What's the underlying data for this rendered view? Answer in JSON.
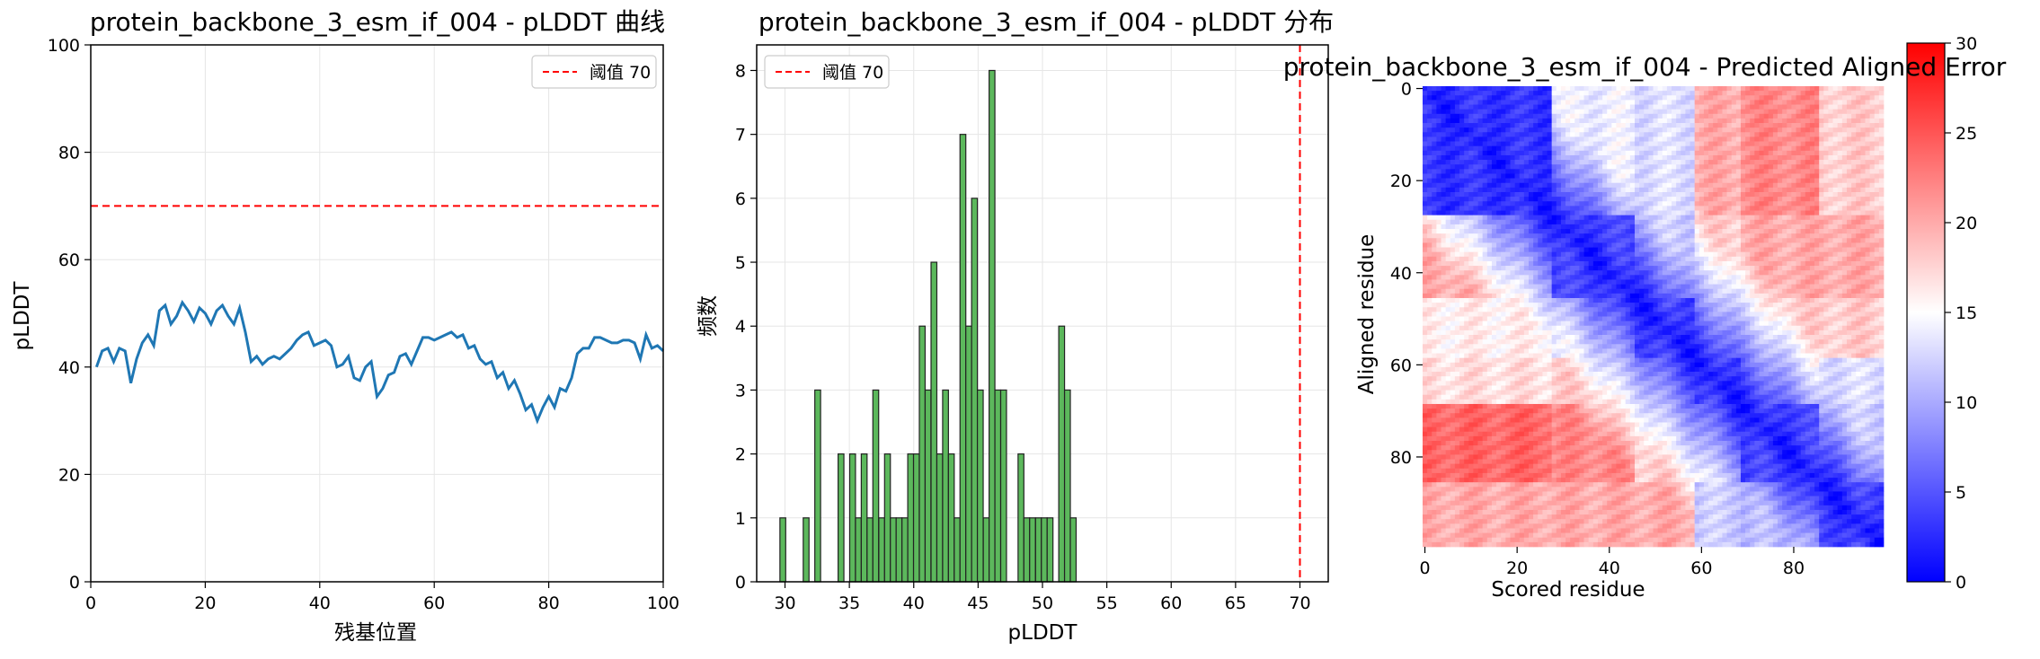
{
  "chart_data": [
    {
      "type": "line",
      "title": "protein_backbone_3_esm_if_004 - pLDDT 曲线",
      "xlabel": "残基位置",
      "ylabel": "pLDDT",
      "xlim": [
        0,
        100
      ],
      "ylim": [
        0,
        100
      ],
      "xticks": [
        0,
        20,
        40,
        60,
        80,
        100
      ],
      "yticks": [
        0,
        20,
        40,
        60,
        80,
        100
      ],
      "grid": true,
      "legend_position": "top-right",
      "colors": {
        "line": "#1f77b4",
        "threshold": "#ff0000"
      },
      "threshold": {
        "label": "阈值 70",
        "value": 70
      },
      "x": [
        1,
        2,
        3,
        4,
        5,
        6,
        7,
        8,
        9,
        10,
        11,
        12,
        13,
        14,
        15,
        16,
        17,
        18,
        19,
        20,
        21,
        22,
        23,
        24,
        25,
        26,
        27,
        28,
        29,
        30,
        31,
        32,
        33,
        34,
        35,
        36,
        37,
        38,
        39,
        40,
        41,
        42,
        43,
        44,
        45,
        46,
        47,
        48,
        49,
        50,
        51,
        52,
        53,
        54,
        55,
        56,
        57,
        58,
        59,
        60,
        61,
        62,
        63,
        64,
        65,
        66,
        67,
        68,
        69,
        70,
        71,
        72,
        73,
        74,
        75,
        76,
        77,
        78,
        79,
        80,
        81,
        82,
        83,
        84,
        85,
        86,
        87,
        88,
        89,
        90,
        91,
        92,
        93,
        94,
        95,
        96,
        97,
        98,
        99,
        100
      ],
      "y": [
        40,
        43,
        43.5,
        41,
        43.5,
        43,
        37,
        41.5,
        44.5,
        46,
        44,
        50.5,
        51.5,
        48,
        49.5,
        52,
        50.5,
        48.5,
        51,
        50,
        48,
        50.5,
        51.5,
        49.5,
        48,
        51,
        46.5,
        41,
        42,
        40.5,
        41.5,
        42,
        41.5,
        42.5,
        43.5,
        45,
        46,
        46.5,
        44,
        44.5,
        45,
        44,
        40,
        40.5,
        42,
        38,
        37.5,
        40,
        41,
        34.5,
        36,
        38.5,
        39,
        42,
        42.5,
        40.5,
        43,
        45.5,
        45.5,
        45,
        45.5,
        46,
        46.5,
        45.5,
        46,
        43.5,
        44,
        41.5,
        40.5,
        41,
        38,
        39,
        36,
        37.5,
        35,
        32,
        33,
        30,
        32.5,
        34.5,
        32.5,
        36,
        35.5,
        38,
        42.5,
        43.5,
        43.5,
        45.5,
        45.5,
        45,
        44.5,
        44.5,
        45,
        45,
        44.5,
        41.5,
        46,
        43.5,
        44,
        43
      ]
    },
    {
      "type": "bar",
      "title": "protein_backbone_3_esm_if_004 - pLDDT 分布",
      "xlabel": "pLDDT",
      "ylabel": "频数",
      "xlim": [
        27.8,
        72.2
      ],
      "ylim": [
        0,
        8.4
      ],
      "xticks": [
        30,
        35,
        40,
        45,
        50,
        55,
        60,
        65,
        70
      ],
      "yticks": [
        0,
        1,
        2,
        3,
        4,
        5,
        6,
        7,
        8
      ],
      "grid": true,
      "legend_position": "top-left",
      "colors": {
        "bar": "#5cb85c",
        "edge": "#222222",
        "threshold": "#ff0000"
      },
      "threshold": {
        "label": "阈值 70",
        "value": 70
      },
      "bin_width": 0.45,
      "bins": [
        {
          "x": 29.83,
          "count": 1
        },
        {
          "x": 31.64,
          "count": 1
        },
        {
          "x": 32.54,
          "count": 3
        },
        {
          "x": 34.35,
          "count": 2
        },
        {
          "x": 35.25,
          "count": 2
        },
        {
          "x": 35.7,
          "count": 1
        },
        {
          "x": 36.15,
          "count": 2
        },
        {
          "x": 36.6,
          "count": 1
        },
        {
          "x": 37.05,
          "count": 3
        },
        {
          "x": 37.51,
          "count": 1
        },
        {
          "x": 37.96,
          "count": 2
        },
        {
          "x": 38.41,
          "count": 1
        },
        {
          "x": 38.86,
          "count": 1
        },
        {
          "x": 39.31,
          "count": 1
        },
        {
          "x": 39.76,
          "count": 2
        },
        {
          "x": 40.21,
          "count": 2
        },
        {
          "x": 40.66,
          "count": 4
        },
        {
          "x": 41.11,
          "count": 3
        },
        {
          "x": 41.57,
          "count": 5
        },
        {
          "x": 42.02,
          "count": 2
        },
        {
          "x": 42.47,
          "count": 3
        },
        {
          "x": 42.92,
          "count": 2
        },
        {
          "x": 43.37,
          "count": 1
        },
        {
          "x": 43.82,
          "count": 7
        },
        {
          "x": 44.27,
          "count": 4
        },
        {
          "x": 44.72,
          "count": 6
        },
        {
          "x": 45.17,
          "count": 3
        },
        {
          "x": 45.63,
          "count": 1
        },
        {
          "x": 46.08,
          "count": 8
        },
        {
          "x": 46.53,
          "count": 3
        },
        {
          "x": 46.98,
          "count": 3
        },
        {
          "x": 48.33,
          "count": 2
        },
        {
          "x": 48.78,
          "count": 1
        },
        {
          "x": 49.23,
          "count": 1
        },
        {
          "x": 49.69,
          "count": 1
        },
        {
          "x": 50.14,
          "count": 1
        },
        {
          "x": 50.59,
          "count": 1
        },
        {
          "x": 51.49,
          "count": 4
        },
        {
          "x": 51.94,
          "count": 3
        },
        {
          "x": 52.39,
          "count": 1
        }
      ]
    },
    {
      "type": "heatmap",
      "title": "protein_backbone_3_esm_if_004 - Predicted Aligned Error",
      "xlabel": "Scored residue",
      "ylabel": "Aligned residue",
      "n": 100,
      "xticks": [
        0,
        20,
        40,
        60,
        80
      ],
      "yticks": [
        0,
        20,
        40,
        60,
        80
      ],
      "colormap": "bwr",
      "colors": {
        "low": "#0000ff",
        "mid": "#ffffff",
        "high": "#ff0000"
      },
      "colorbar": {
        "min": 0,
        "max": 30,
        "ticks": [
          0,
          5,
          10,
          15,
          20,
          25,
          30
        ]
      },
      "domains": [
        [
          0,
          27
        ],
        [
          28,
          45
        ],
        [
          46,
          58
        ],
        [
          59,
          68
        ],
        [
          69,
          85
        ],
        [
          86,
          99
        ]
      ],
      "domain_error": [
        [
          3,
          14,
          13,
          20,
          22,
          18
        ],
        [
          20,
          4,
          12,
          18,
          20,
          20
        ],
        [
          16,
          14,
          4,
          14,
          18,
          18
        ],
        [
          17,
          18,
          14,
          4,
          19,
          13
        ],
        [
          24,
          22,
          18,
          18,
          4,
          12
        ],
        [
          20,
          20,
          20,
          12,
          11,
          4
        ]
      ]
    }
  ]
}
